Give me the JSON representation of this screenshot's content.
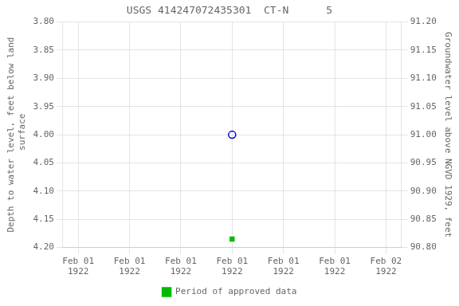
{
  "chart_data": {
    "type": "scatter",
    "title": "USGS 414247072435301  CT-N      5",
    "y_label": "Depth to water level, feet below land\n surface",
    "y2_label": "Groundwater level above NGVD 1929, feet",
    "x": [
      0.5
    ],
    "xlim": [
      -0.05,
      1.05
    ],
    "xticks": [
      {
        "value": 0.0,
        "label": "Feb 01\n1922"
      },
      {
        "value": 0.16666666666666666,
        "label": "Feb 01\n1922"
      },
      {
        "value": 0.3333333333333333,
        "label": "Feb 01\n1922"
      },
      {
        "value": 0.5,
        "label": "Feb 01\n1922"
      },
      {
        "value": 0.6666666666666666,
        "label": "Feb 01\n1922"
      },
      {
        "value": 0.8333333333333333,
        "label": "Feb 01\n1922"
      },
      {
        "value": 1.0,
        "label": "Feb 02\n1922"
      }
    ],
    "ylim": [
      4.2,
      3.8
    ],
    "yticks": [
      {
        "value": 3.8,
        "label": "3.80"
      },
      3.85,
      {
        "value": 3.9,
        "label": "3.90"
      },
      3.95,
      {
        "value": 4.0,
        "label": "4.00"
      },
      4.05,
      {
        "value": 4.1,
        "label": "4.10"
      },
      4.15,
      {
        "value": 4.2,
        "label": "4.20"
      }
    ],
    "y2lim": [
      90.8,
      91.2
    ],
    "y2ticks": [
      {
        "value": 91.2,
        "label": "91.20"
      },
      91.15,
      {
        "value": 91.1,
        "label": "91.10"
      },
      91.05,
      {
        "value": 91.0,
        "label": "91.00"
      },
      90.95,
      {
        "value": 90.9,
        "label": "90.90"
      },
      90.85,
      {
        "value": 90.8,
        "label": "90.80"
      }
    ],
    "series": [
      {
        "color": "#0000cc",
        "marker": "open_circle",
        "values": [
          4.0
        ]
      },
      {
        "name": "Period of approved data",
        "color": "#00bb00",
        "marker": "square",
        "values": [
          4.185
        ]
      }
    ],
    "grid": true,
    "legend": "bottom"
  }
}
